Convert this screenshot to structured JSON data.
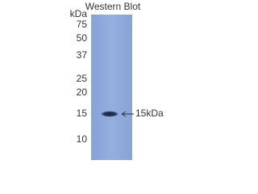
{
  "title": "Western Blot",
  "unit": "kDa",
  "markers": [
    "75",
    "50",
    "37",
    "25",
    "20",
    "15",
    "10"
  ],
  "band_label": "15kDa"
}
